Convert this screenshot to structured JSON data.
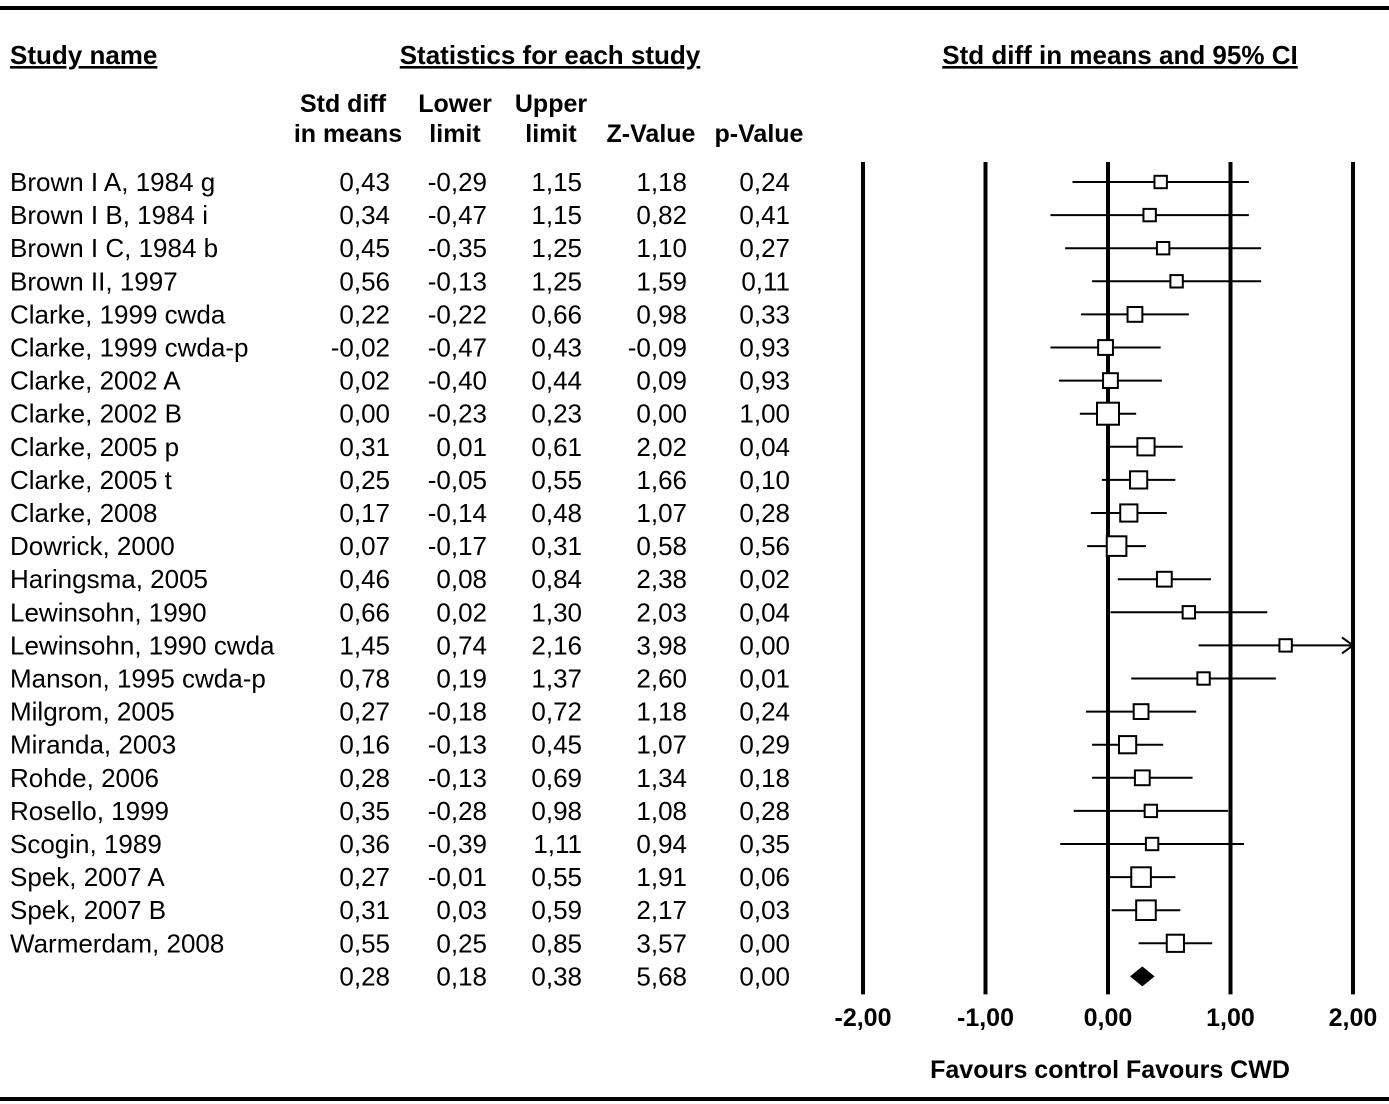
{
  "chart_data": {
    "type": "forest",
    "headers": {
      "study_name": "Study name",
      "statistics": "Statistics for each study",
      "ci": "Std diff in means and 95% CI"
    },
    "columns": [
      {
        "key": "std_diff",
        "line1": "Std diff",
        "line2": "in means"
      },
      {
        "key": "lower",
        "line1": "Lower",
        "line2": "limit"
      },
      {
        "key": "upper",
        "line1": "Upper",
        "line2": "limit"
      },
      {
        "key": "z",
        "line1": "",
        "line2": "Z-Value"
      },
      {
        "key": "p",
        "line1": "",
        "line2": "p-Value"
      }
    ],
    "studies": [
      {
        "name": "Brown I A, 1984 g",
        "std_diff": "0,43",
        "lower": "-0,29",
        "upper": "1,15",
        "z": "1,18",
        "p": "0,24",
        "weight": 1
      },
      {
        "name": "Brown I B, 1984 i",
        "std_diff": "0,34",
        "lower": "-0,47",
        "upper": "1,15",
        "z": "0,82",
        "p": "0,41",
        "weight": 1
      },
      {
        "name": "Brown I C, 1984 b",
        "std_diff": "0,45",
        "lower": "-0,35",
        "upper": "1,25",
        "z": "1,10",
        "p": "0,27",
        "weight": 1
      },
      {
        "name": "Brown II, 1997",
        "std_diff": "0,56",
        "lower": "-0,13",
        "upper": "1,25",
        "z": "1,59",
        "p": "0,11",
        "weight": 1
      },
      {
        "name": "Clarke, 1999 cwda",
        "std_diff": "0,22",
        "lower": "-0,22",
        "upper": "0,66",
        "z": "0,98",
        "p": "0,33",
        "weight": 2
      },
      {
        "name": "Clarke, 1999 cwda-p",
        "std_diff": "-0,02",
        "lower": "-0,47",
        "upper": "0,43",
        "z": "-0,09",
        "p": "0,93",
        "weight": 2
      },
      {
        "name": "Clarke, 2002 A",
        "std_diff": "0,02",
        "lower": "-0,40",
        "upper": "0,44",
        "z": "0,09",
        "p": "0,93",
        "weight": 2
      },
      {
        "name": "Clarke, 2002 B",
        "std_diff": "0,00",
        "lower": "-0,23",
        "upper": "0,23",
        "z": "0,00",
        "p": "1,00",
        "weight": 5
      },
      {
        "name": "Clarke, 2005 p",
        "std_diff": "0,31",
        "lower": "0,01",
        "upper": "0,61",
        "z": "2,02",
        "p": "0,04",
        "weight": 3
      },
      {
        "name": "Clarke, 2005 t",
        "std_diff": "0,25",
        "lower": "-0,05",
        "upper": "0,55",
        "z": "1,66",
        "p": "0,10",
        "weight": 3
      },
      {
        "name": "Clarke, 2008",
        "std_diff": "0,17",
        "lower": "-0,14",
        "upper": "0,48",
        "z": "1,07",
        "p": "0,28",
        "weight": 3
      },
      {
        "name": "Dowrick, 2000",
        "std_diff": "0,07",
        "lower": "-0,17",
        "upper": "0,31",
        "z": "0,58",
        "p": "0,56",
        "weight": 4
      },
      {
        "name": "Haringsma, 2005",
        "std_diff": "0,46",
        "lower": "0,08",
        "upper": "0,84",
        "z": "2,38",
        "p": "0,02",
        "weight": 2
      },
      {
        "name": "Lewinsohn, 1990",
        "std_diff": "0,66",
        "lower": "0,02",
        "upper": "1,30",
        "z": "2,03",
        "p": "0,04",
        "weight": 1
      },
      {
        "name": "Lewinsohn, 1990 cwda",
        "std_diff": "1,45",
        "lower": "0,74",
        "upper": "2,16",
        "z": "3,98",
        "p": "0,00",
        "weight": 1
      },
      {
        "name": "Manson, 1995 cwda-p",
        "std_diff": "0,78",
        "lower": "0,19",
        "upper": "1,37",
        "z": "2,60",
        "p": "0,01",
        "weight": 1
      },
      {
        "name": "Milgrom, 2005",
        "std_diff": "0,27",
        "lower": "-0,18",
        "upper": "0,72",
        "z": "1,18",
        "p": "0,24",
        "weight": 2
      },
      {
        "name": "Miranda, 2003",
        "std_diff": "0,16",
        "lower": "-0,13",
        "upper": "0,45",
        "z": "1,07",
        "p": "0,29",
        "weight": 3
      },
      {
        "name": "Rohde, 2006",
        "std_diff": "0,28",
        "lower": "-0,13",
        "upper": "0,69",
        "z": "1,34",
        "p": "0,18",
        "weight": 2
      },
      {
        "name": "Rosello, 1999",
        "std_diff": "0,35",
        "lower": "-0,28",
        "upper": "0,98",
        "z": "1,08",
        "p": "0,28",
        "weight": 1
      },
      {
        "name": "Scogin, 1989",
        "std_diff": "0,36",
        "lower": "-0,39",
        "upper": "1,11",
        "z": "0,94",
        "p": "0,35",
        "weight": 1
      },
      {
        "name": "Spek, 2007 A",
        "std_diff": "0,27",
        "lower": "-0,01",
        "upper": "0,55",
        "z": "1,91",
        "p": "0,06",
        "weight": 4
      },
      {
        "name": "Spek, 2007 B",
        "std_diff": "0,31",
        "lower": "0,03",
        "upper": "0,59",
        "z": "2,17",
        "p": "0,03",
        "weight": 4
      },
      {
        "name": "Warmerdam, 2008",
        "std_diff": "0,55",
        "lower": "0,25",
        "upper": "0,85",
        "z": "3,57",
        "p": "0,00",
        "weight": 3
      }
    ],
    "summary": {
      "name": "",
      "std_diff": "0,28",
      "lower": "0,18",
      "upper": "0,38",
      "z": "5,68",
      "p": "0,00"
    },
    "x_axis": {
      "ticks": [
        "-2,00",
        "-1,00",
        "0,00",
        "1,00",
        "2,00"
      ],
      "tick_values": [
        -2,
        -1,
        0,
        1,
        2
      ],
      "xlim": [
        -2,
        2
      ],
      "label": "Favours control Favours CWD"
    },
    "grid": "vertical lines at each tick",
    "colors": {
      "ink": "#000000",
      "marker_fill": "#ffffff"
    }
  }
}
